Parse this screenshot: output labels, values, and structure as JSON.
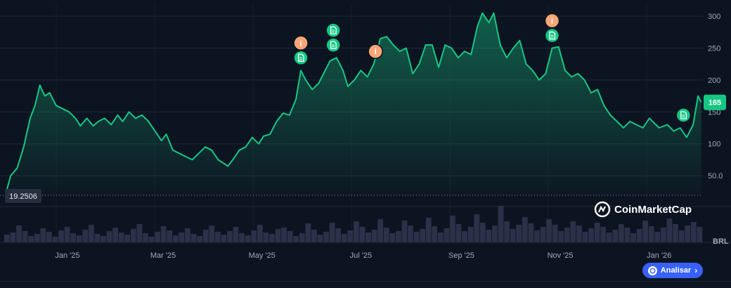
{
  "chart_data": {
    "type": "area",
    "currency": "BRL",
    "current_value_label": "165",
    "baseline_value_label": "19.2506",
    "watermark": "CoinMarketCap",
    "y_ticks": [
      {
        "value": 50,
        "label": "50.0"
      },
      {
        "value": 100,
        "label": "100"
      },
      {
        "value": 150,
        "label": "150"
      },
      {
        "value": 200,
        "label": "200"
      },
      {
        "value": 250,
        "label": "250"
      },
      {
        "value": 300,
        "label": "300"
      }
    ],
    "x_ticks": [
      {
        "date": "2025-01-01",
        "label": "Jan '25"
      },
      {
        "date": "2025-03-01",
        "label": "Mar '25"
      },
      {
        "date": "2025-05-01",
        "label": "May '25"
      },
      {
        "date": "2025-07-01",
        "label": "Jul '25"
      },
      {
        "date": "2025-09-01",
        "label": "Sep '25"
      },
      {
        "date": "2025-11-01",
        "label": "Nov '25"
      },
      {
        "date": "2026-01-01",
        "label": "Jan '26"
      }
    ],
    "ylim": [
      19.2506,
      320
    ],
    "grid": true,
    "series": [
      {
        "points": [
          [
            "2024-11-24",
            22
          ],
          [
            "2024-11-27",
            50
          ],
          [
            "2024-12-01",
            62
          ],
          [
            "2024-12-05",
            95
          ],
          [
            "2024-12-09",
            140
          ],
          [
            "2024-12-12",
            160
          ],
          [
            "2024-12-15",
            192
          ],
          [
            "2024-12-18",
            175
          ],
          [
            "2024-12-21",
            180
          ],
          [
            "2024-12-25",
            160
          ],
          [
            "2024-12-29",
            155
          ],
          [
            "2025-01-02",
            150
          ],
          [
            "2025-01-06",
            140
          ],
          [
            "2025-01-09",
            128
          ],
          [
            "2025-01-13",
            140
          ],
          [
            "2025-01-17",
            128
          ],
          [
            "2025-01-20",
            135
          ],
          [
            "2025-01-24",
            140
          ],
          [
            "2025-01-28",
            130
          ],
          [
            "2025-02-01",
            145
          ],
          [
            "2025-02-04",
            135
          ],
          [
            "2025-02-08",
            150
          ],
          [
            "2025-02-12",
            140
          ],
          [
            "2025-02-16",
            145
          ],
          [
            "2025-02-20",
            135
          ],
          [
            "2025-02-24",
            120
          ],
          [
            "2025-02-28",
            105
          ],
          [
            "2025-03-03",
            115
          ],
          [
            "2025-03-07",
            90
          ],
          [
            "2025-03-11",
            85
          ],
          [
            "2025-03-15",
            80
          ],
          [
            "2025-03-19",
            75
          ],
          [
            "2025-03-23",
            85
          ],
          [
            "2025-03-27",
            95
          ],
          [
            "2025-03-31",
            90
          ],
          [
            "2025-04-04",
            75
          ],
          [
            "2025-04-07",
            70
          ],
          [
            "2025-04-10",
            65
          ],
          [
            "2025-04-13",
            75
          ],
          [
            "2025-04-17",
            90
          ],
          [
            "2025-04-21",
            95
          ],
          [
            "2025-04-25",
            110
          ],
          [
            "2025-04-29",
            100
          ],
          [
            "2025-05-02",
            112
          ],
          [
            "2025-05-06",
            115
          ],
          [
            "2025-05-10",
            135
          ],
          [
            "2025-05-14",
            148
          ],
          [
            "2025-05-18",
            145
          ],
          [
            "2025-05-22",
            170
          ],
          [
            "2025-05-25",
            215
          ],
          [
            "2025-05-28",
            200
          ],
          [
            "2025-06-01",
            185
          ],
          [
            "2025-06-05",
            195
          ],
          [
            "2025-06-09",
            215
          ],
          [
            "2025-06-12",
            230
          ],
          [
            "2025-06-16",
            235
          ],
          [
            "2025-06-20",
            215
          ],
          [
            "2025-06-23",
            190
          ],
          [
            "2025-06-27",
            200
          ],
          [
            "2025-07-01",
            215
          ],
          [
            "2025-07-05",
            205
          ],
          [
            "2025-07-09",
            225
          ],
          [
            "2025-07-13",
            265
          ],
          [
            "2025-07-17",
            268
          ],
          [
            "2025-07-21",
            255
          ],
          [
            "2025-07-25",
            245
          ],
          [
            "2025-07-29",
            250
          ],
          [
            "2025-08-02",
            210
          ],
          [
            "2025-08-06",
            225
          ],
          [
            "2025-08-10",
            255
          ],
          [
            "2025-08-14",
            255
          ],
          [
            "2025-08-18",
            220
          ],
          [
            "2025-08-22",
            255
          ],
          [
            "2025-08-26",
            250
          ],
          [
            "2025-08-30",
            235
          ],
          [
            "2025-09-03",
            245
          ],
          [
            "2025-09-07",
            240
          ],
          [
            "2025-09-11",
            285
          ],
          [
            "2025-09-14",
            305
          ],
          [
            "2025-09-18",
            290
          ],
          [
            "2025-09-21",
            305
          ],
          [
            "2025-09-25",
            255
          ],
          [
            "2025-09-29",
            235
          ],
          [
            "2025-10-03",
            250
          ],
          [
            "2025-10-07",
            262
          ],
          [
            "2025-10-11",
            225
          ],
          [
            "2025-10-15",
            215
          ],
          [
            "2025-10-19",
            200
          ],
          [
            "2025-10-23",
            210
          ],
          [
            "2025-10-27",
            250
          ],
          [
            "2025-10-31",
            252
          ],
          [
            "2025-11-04",
            215
          ],
          [
            "2025-11-08",
            205
          ],
          [
            "2025-11-12",
            210
          ],
          [
            "2025-11-16",
            200
          ],
          [
            "2025-11-20",
            180
          ],
          [
            "2025-11-24",
            185
          ],
          [
            "2025-11-28",
            160
          ],
          [
            "2025-12-02",
            145
          ],
          [
            "2025-12-06",
            135
          ],
          [
            "2025-12-10",
            125
          ],
          [
            "2025-12-14",
            135
          ],
          [
            "2025-12-18",
            130
          ],
          [
            "2025-12-22",
            125
          ],
          [
            "2025-12-26",
            140
          ],
          [
            "2026-01-01",
            125
          ],
          [
            "2026-01-06",
            130
          ],
          [
            "2026-01-10",
            120
          ],
          [
            "2026-01-14",
            125
          ],
          [
            "2026-01-18",
            110
          ],
          [
            "2026-01-22",
            130
          ],
          [
            "2026-01-25",
            175
          ],
          [
            "2026-01-27",
            165
          ]
        ]
      }
    ],
    "volume": [
      11,
      14,
      24,
      16,
      9,
      12,
      20,
      15,
      8,
      17,
      22,
      13,
      10,
      18,
      25,
      12,
      9,
      16,
      21,
      14,
      11,
      19,
      26,
      13,
      8,
      15,
      23,
      17,
      10,
      14,
      20,
      12,
      9,
      18,
      24,
      15,
      11,
      16,
      22,
      13,
      10,
      17,
      25,
      14,
      12,
      19,
      21,
      16,
      9,
      13,
      27,
      18,
      11,
      15,
      28,
      20,
      12,
      17,
      30,
      22,
      14,
      18,
      33,
      21,
      13,
      16,
      31,
      24,
      15,
      19,
      35,
      23,
      14,
      20,
      38,
      26,
      16,
      22,
      40,
      28,
      18,
      24,
      52,
      30,
      19,
      25,
      36,
      27,
      17,
      22,
      33,
      25,
      16,
      21,
      30,
      24,
      15,
      20,
      28,
      22,
      14,
      18,
      26,
      21,
      13,
      19,
      31,
      23,
      15,
      21,
      34,
      26,
      17,
      24,
      29,
      22
    ],
    "events": [
      {
        "date": "2025-05-25",
        "type": "info",
        "glyph": "i"
      },
      {
        "date": "2025-05-25",
        "type": "doc",
        "glyph": "doc"
      },
      {
        "date": "2025-06-14",
        "type": "doc",
        "glyph": "doc"
      },
      {
        "date": "2025-06-14",
        "type": "doc",
        "glyph": "doc"
      },
      {
        "date": "2025-07-10",
        "type": "info",
        "glyph": "i"
      },
      {
        "date": "2025-10-27",
        "type": "info",
        "glyph": "i"
      },
      {
        "date": "2025-10-27",
        "type": "doc",
        "glyph": "doc"
      },
      {
        "date": "2026-01-16",
        "type": "doc",
        "glyph": "doc"
      }
    ],
    "colors": {
      "line": "#16c784",
      "fill_top": "#16c784",
      "background": "#0d1421",
      "grid": "#1e2736",
      "axis_text": "#a1a7bb",
      "volume": "#2b3148",
      "info_marker": "#f7a678",
      "doc_marker": "#16c784",
      "value_badge": "#16c784",
      "baseline_badge": "#262f3f"
    }
  },
  "ui": {
    "analyze_button_label": "Analisar",
    "analyze_button_color": "#3861fb"
  }
}
